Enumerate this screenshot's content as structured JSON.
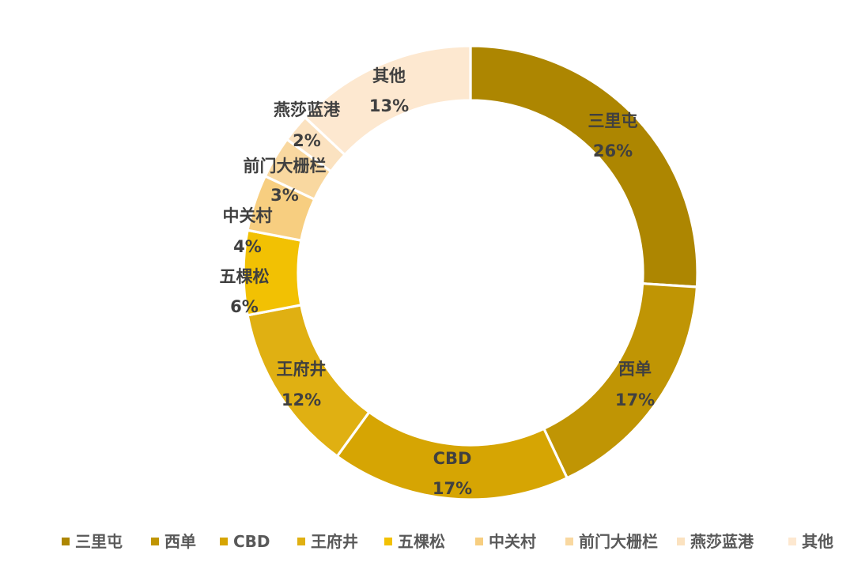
{
  "chart_data": {
    "type": "pie",
    "donut": true,
    "title": "",
    "legend_position": "bottom",
    "categories": [
      "三里屯",
      "西单",
      "CBD",
      "王府井",
      "五棵松",
      "中关村",
      "前门大栅栏",
      "燕莎蓝港",
      "其他"
    ],
    "values": [
      26,
      17,
      17,
      12,
      6,
      4,
      3,
      2,
      13
    ],
    "labels": [
      "26%",
      "17%",
      "17%",
      "12%",
      "6%",
      "4%",
      "3%",
      "2%",
      "13%"
    ],
    "colors": [
      "#AD8601",
      "#C09504",
      "#D6A503",
      "#E0B012",
      "#F2C103",
      "#F7CE80",
      "#F9D8A0",
      "#FBE2C0",
      "#FDE8D0"
    ]
  }
}
